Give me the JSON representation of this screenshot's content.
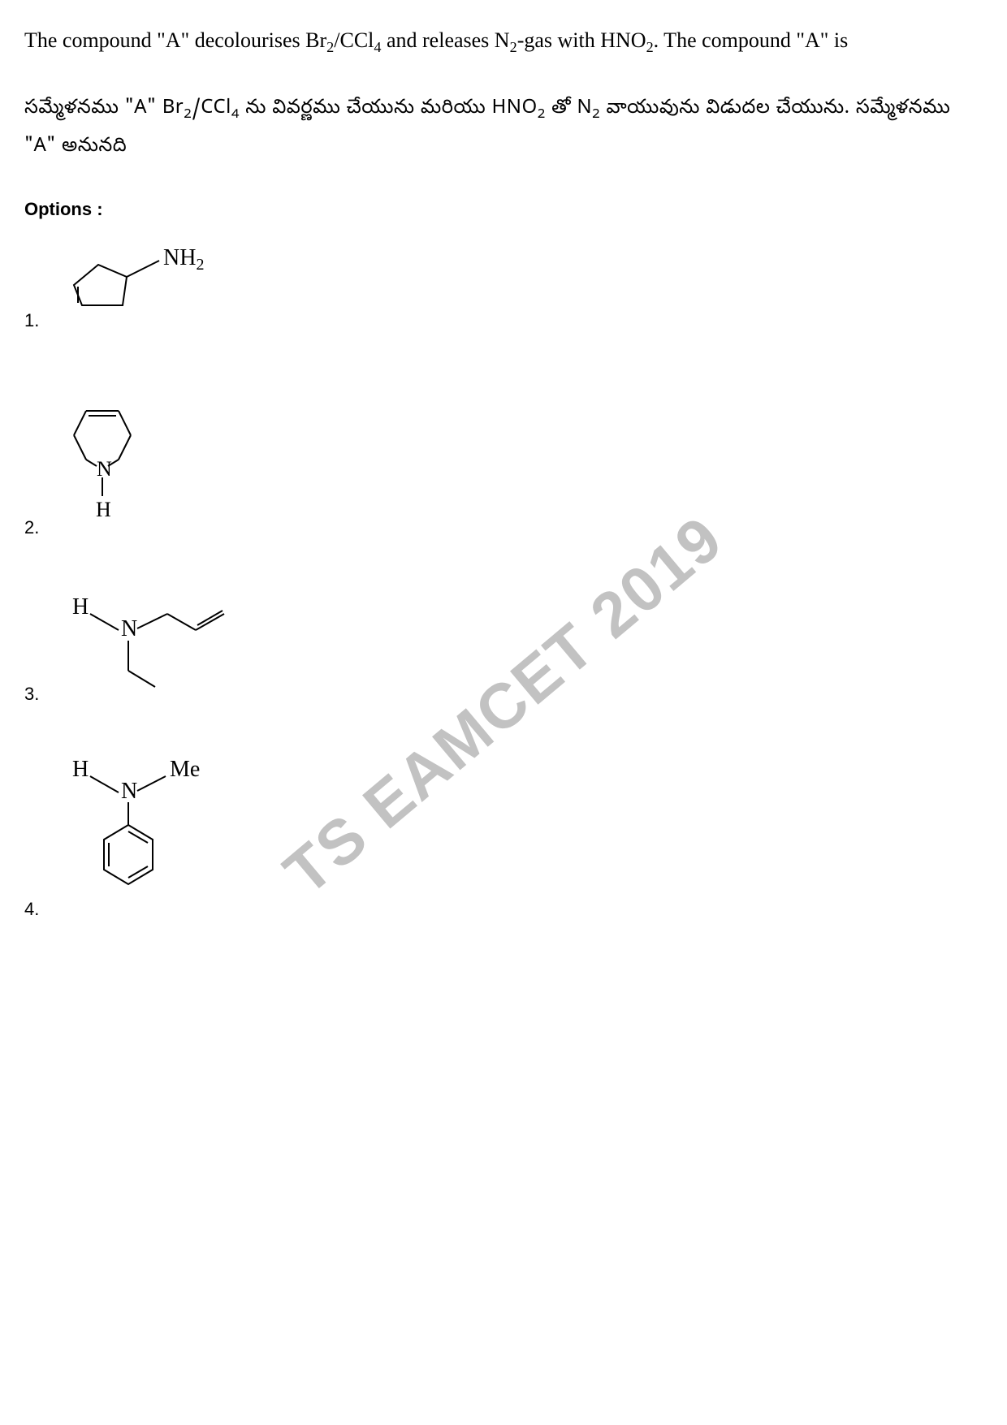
{
  "question": {
    "english_html": "The compound \"A\" decolourises Br<sub>2</sub>/CCl<sub>4</sub> and releases N<sub>2</sub>-gas with HNO<sub>2</sub>. The compound \"A\" is",
    "telugu_html": "సమ్మేళనము \"A\" Br<sub>2</sub>/CCl<sub>4</sub> ను వివర్ణము చేయును మరియు HNO<sub>2</sub> తో N<sub>2</sub> వాయువును విడుదల చేయును. సమ్మేళనము \"A\" అనునది"
  },
  "options_label": "Options :",
  "options": {
    "num1": "1.",
    "num2": "2.",
    "num3": "3.",
    "num4": "4."
  },
  "structures": {
    "opt1": {
      "nh2_label": "NH",
      "nh2_sub": "2",
      "stroke": "#000000",
      "stroke_width": 2
    },
    "opt2": {
      "n_label": "N",
      "h_label": "H",
      "stroke": "#000000",
      "stroke_width": 2
    },
    "opt3": {
      "h_label": "H",
      "n_label": "N",
      "stroke": "#000000",
      "stroke_width": 2
    },
    "opt4": {
      "h_label": "H",
      "n_label": "N",
      "me_label": "Me",
      "stroke": "#000000",
      "stroke_width": 2
    }
  },
  "watermark": "TS EAMCET 2019",
  "colors": {
    "text": "#000000",
    "background": "#ffffff",
    "watermark": "rgba(120,120,120,0.45)"
  },
  "fonts": {
    "body": "Times New Roman",
    "label": "Arial"
  }
}
